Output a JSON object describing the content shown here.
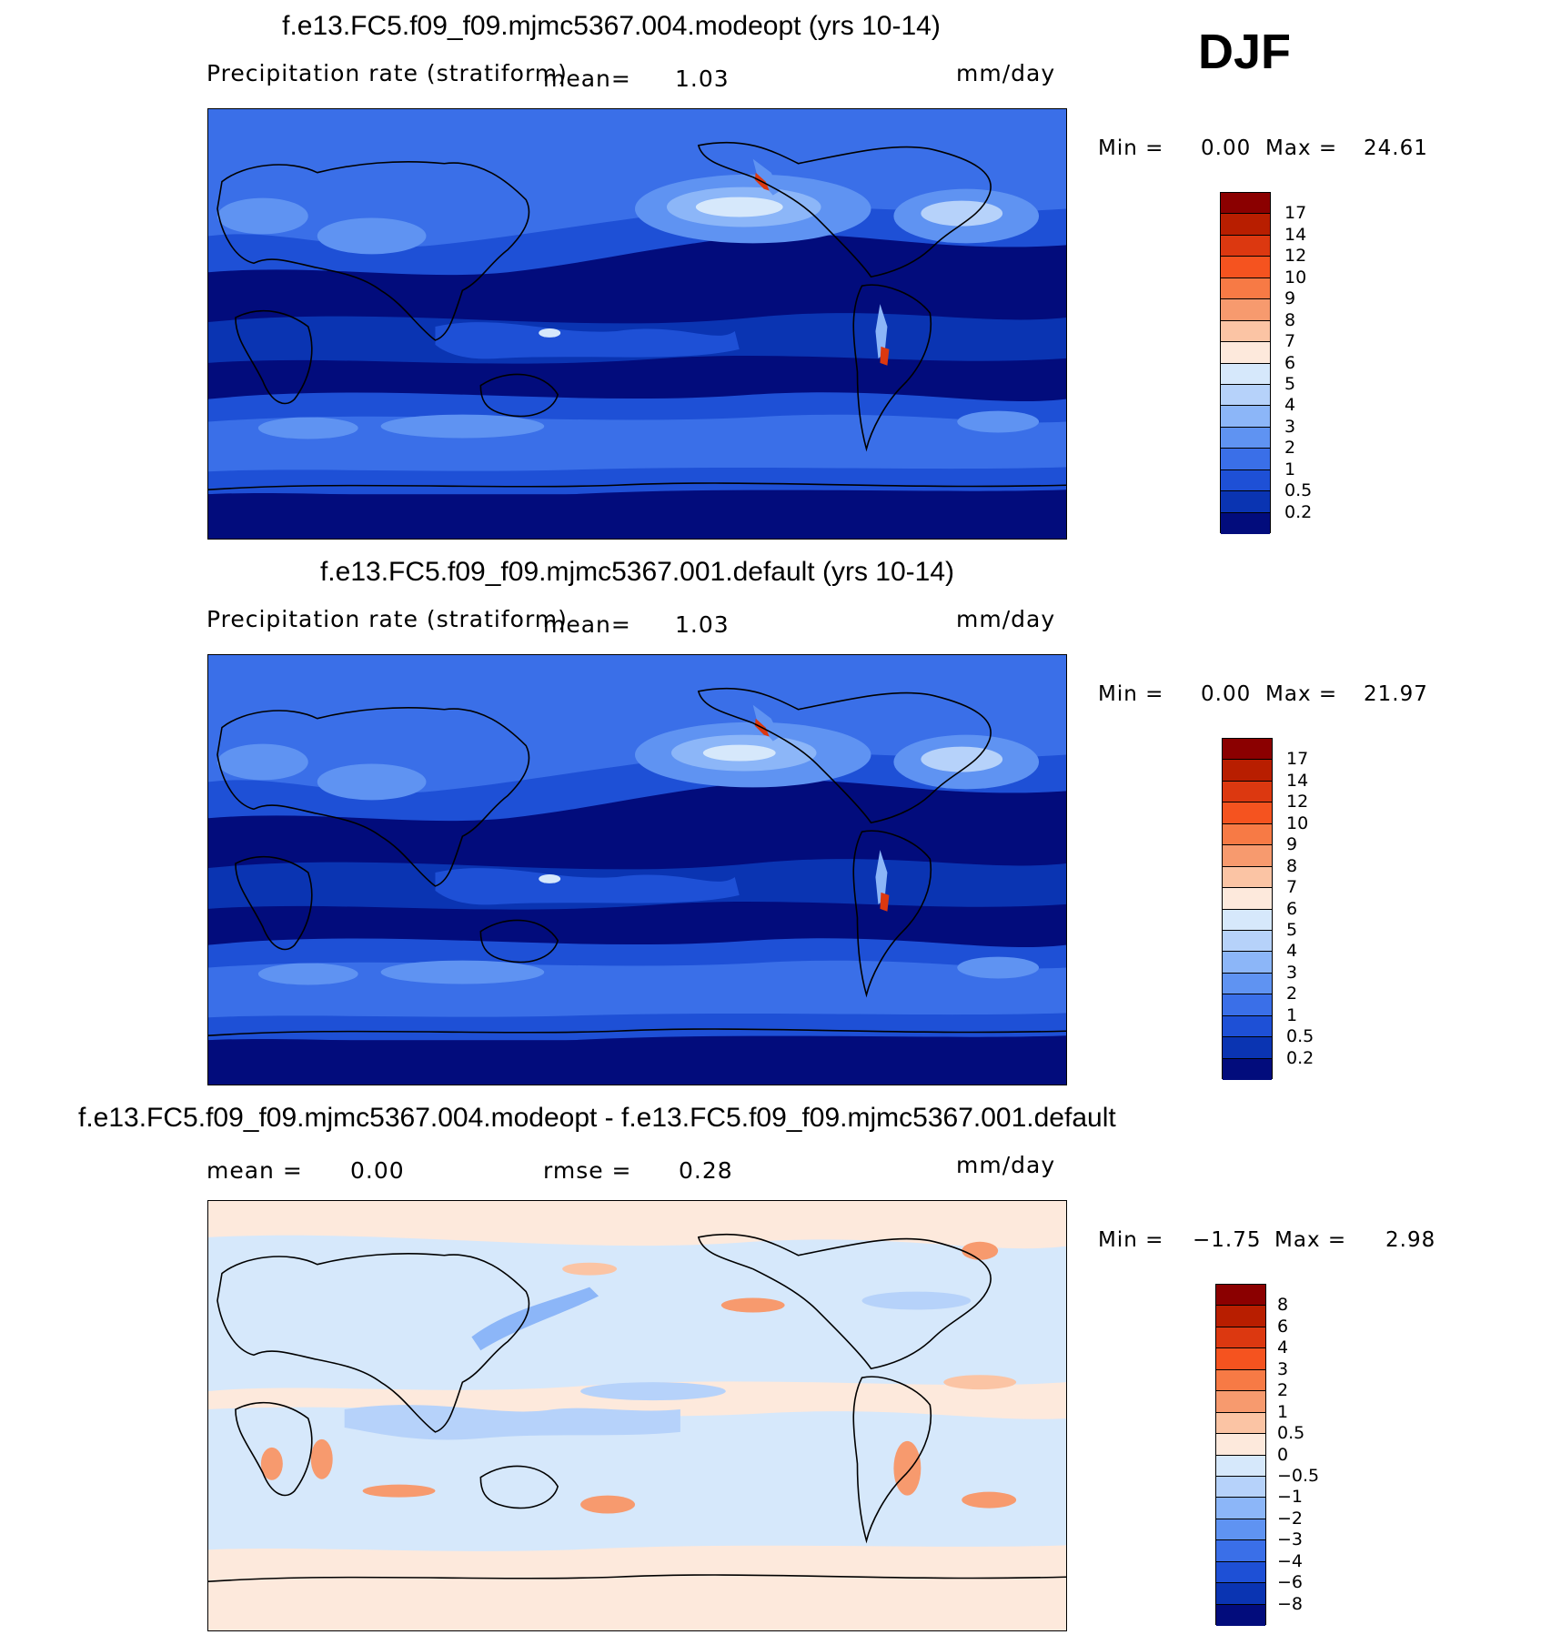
{
  "season": "DJF",
  "panels": [
    {
      "id": "p1",
      "title": "f.e13.FC5.f09_f09.mjmc5367.004.modeopt (yrs 10-14)",
      "left_label": "Precipitation rate (stratiform)",
      "mean_label": "mean=",
      "mean_value": "1.03",
      "units": "mm/day",
      "min_label": "Min =",
      "min_value": "0.00",
      "max_label": "Max =",
      "max_value": "24.61",
      "levels": [
        "17",
        "14",
        "12",
        "10",
        "9",
        "8",
        "7",
        "6",
        "5",
        "4",
        "3",
        "2",
        "1",
        "0.5",
        "0.2"
      ],
      "colors": [
        "#8b0000",
        "#b81e00",
        "#dc3810",
        "#f5531f",
        "#f77a45",
        "#f79a6e",
        "#fbc4a4",
        "#fde9dc",
        "#d6e8fb",
        "#b6d2fa",
        "#8cb6f8",
        "#5f93f2",
        "#3a6fe8",
        "#1e50d6",
        "#0a34b2",
        "#020c7c"
      ]
    },
    {
      "id": "p2",
      "title": "f.e13.FC5.f09_f09.mjmc5367.001.default (yrs 10-14)",
      "left_label": "Precipitation rate (stratiform)",
      "mean_label": "mean=",
      "mean_value": "1.03",
      "units": "mm/day",
      "min_label": "Min =",
      "min_value": "0.00",
      "max_label": "Max =",
      "max_value": "21.97",
      "levels": [
        "17",
        "14",
        "12",
        "10",
        "9",
        "8",
        "7",
        "6",
        "5",
        "4",
        "3",
        "2",
        "1",
        "0.5",
        "0.2"
      ],
      "colors": [
        "#8b0000",
        "#b81e00",
        "#dc3810",
        "#f5531f",
        "#f77a45",
        "#f79a6e",
        "#fbc4a4",
        "#fde9dc",
        "#d6e8fb",
        "#b6d2fa",
        "#8cb6f8",
        "#5f93f2",
        "#3a6fe8",
        "#1e50d6",
        "#0a34b2",
        "#020c7c"
      ]
    },
    {
      "id": "p3",
      "title": "f.e13.FC5.f09_f09.mjmc5367.004.modeopt - f.e13.FC5.f09_f09.mjmc5367.001.default",
      "mean_label": "mean =",
      "mean_value": "0.00",
      "rmse_label": "rmse =",
      "rmse_value": "0.28",
      "units": "mm/day",
      "min_label": "Min =",
      "min_value": "−1.75",
      "max_label": "Max =",
      "max_value": "2.98",
      "levels": [
        "8",
        "6",
        "4",
        "3",
        "2",
        "1",
        "0.5",
        "0",
        "−0.5",
        "−1",
        "−2",
        "−3",
        "−4",
        "−6",
        "−8"
      ],
      "colors": [
        "#8b0000",
        "#b81e00",
        "#dc3810",
        "#f5531f",
        "#f77a45",
        "#f79a6e",
        "#fbc4a4",
        "#fde9dc",
        "#d6e8fb",
        "#b6d2fa",
        "#8cb6f8",
        "#5f93f2",
        "#3a6fe8",
        "#1e50d6",
        "#0a34b2",
        "#020c7c"
      ]
    }
  ]
}
